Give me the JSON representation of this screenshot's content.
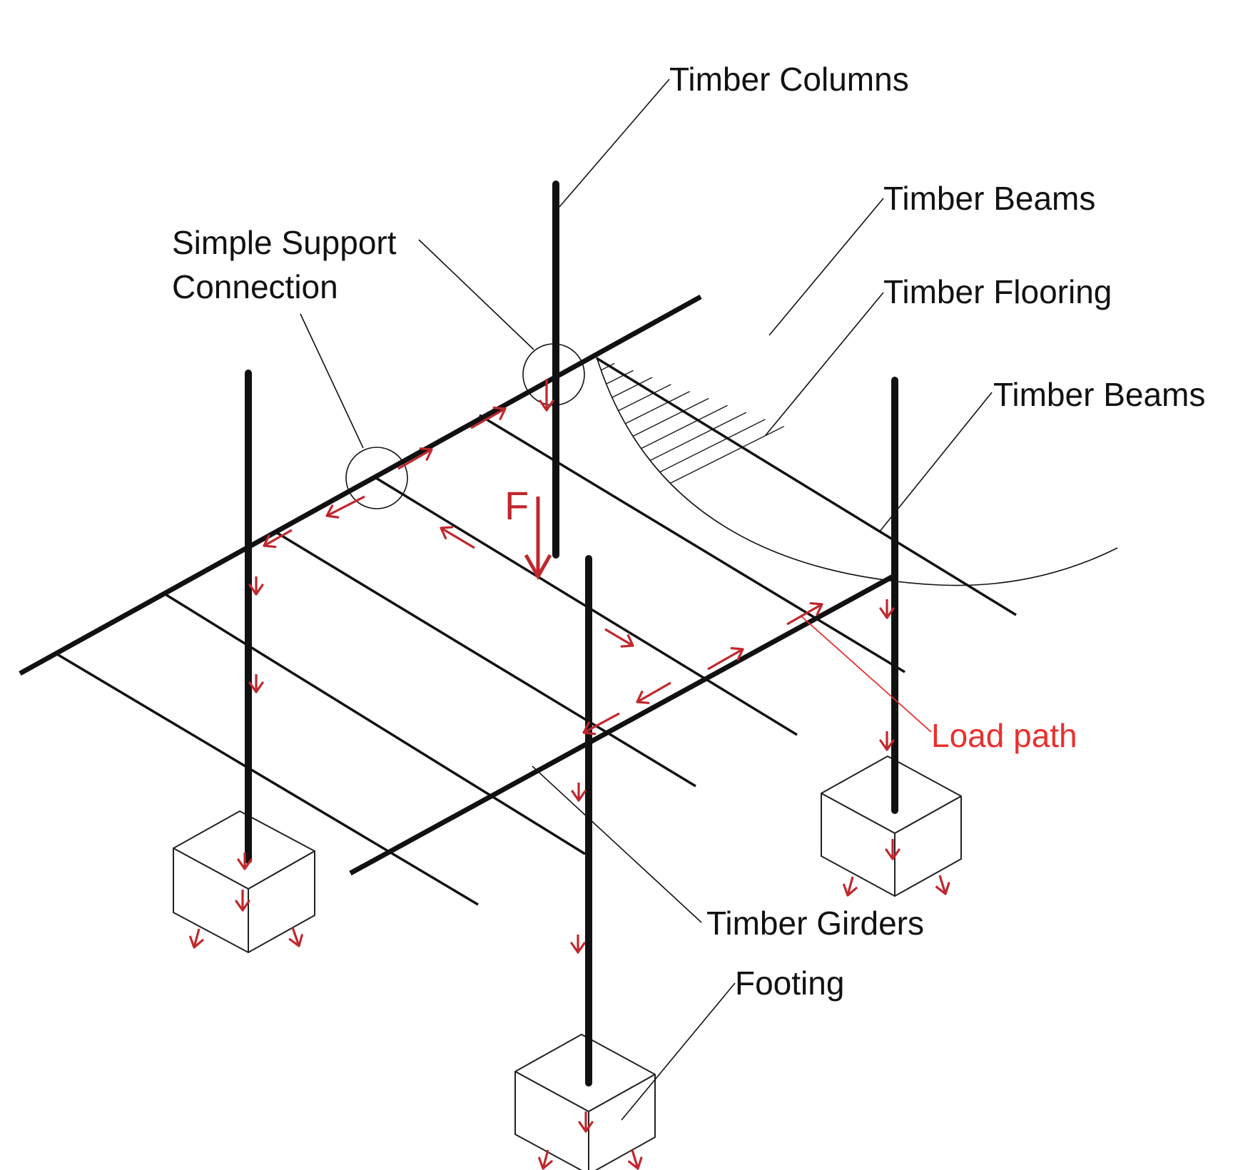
{
  "labels": {
    "timber_columns": "Timber Columns",
    "timber_beams_top": "Timber Beams",
    "timber_flooring": "Timber Flooring",
    "timber_beams_right": "Timber Beams",
    "simple_support_line1": "Simple Support",
    "simple_support_line2": "Connection",
    "load_path": "Load path",
    "timber_girders": "Timber Girders",
    "footing": "Footing",
    "force": "F"
  },
  "colors": {
    "structure": "#111111",
    "load_arrow": "#c0272d",
    "load_path_label": "#e8312f",
    "force_label": "#c0272d"
  }
}
